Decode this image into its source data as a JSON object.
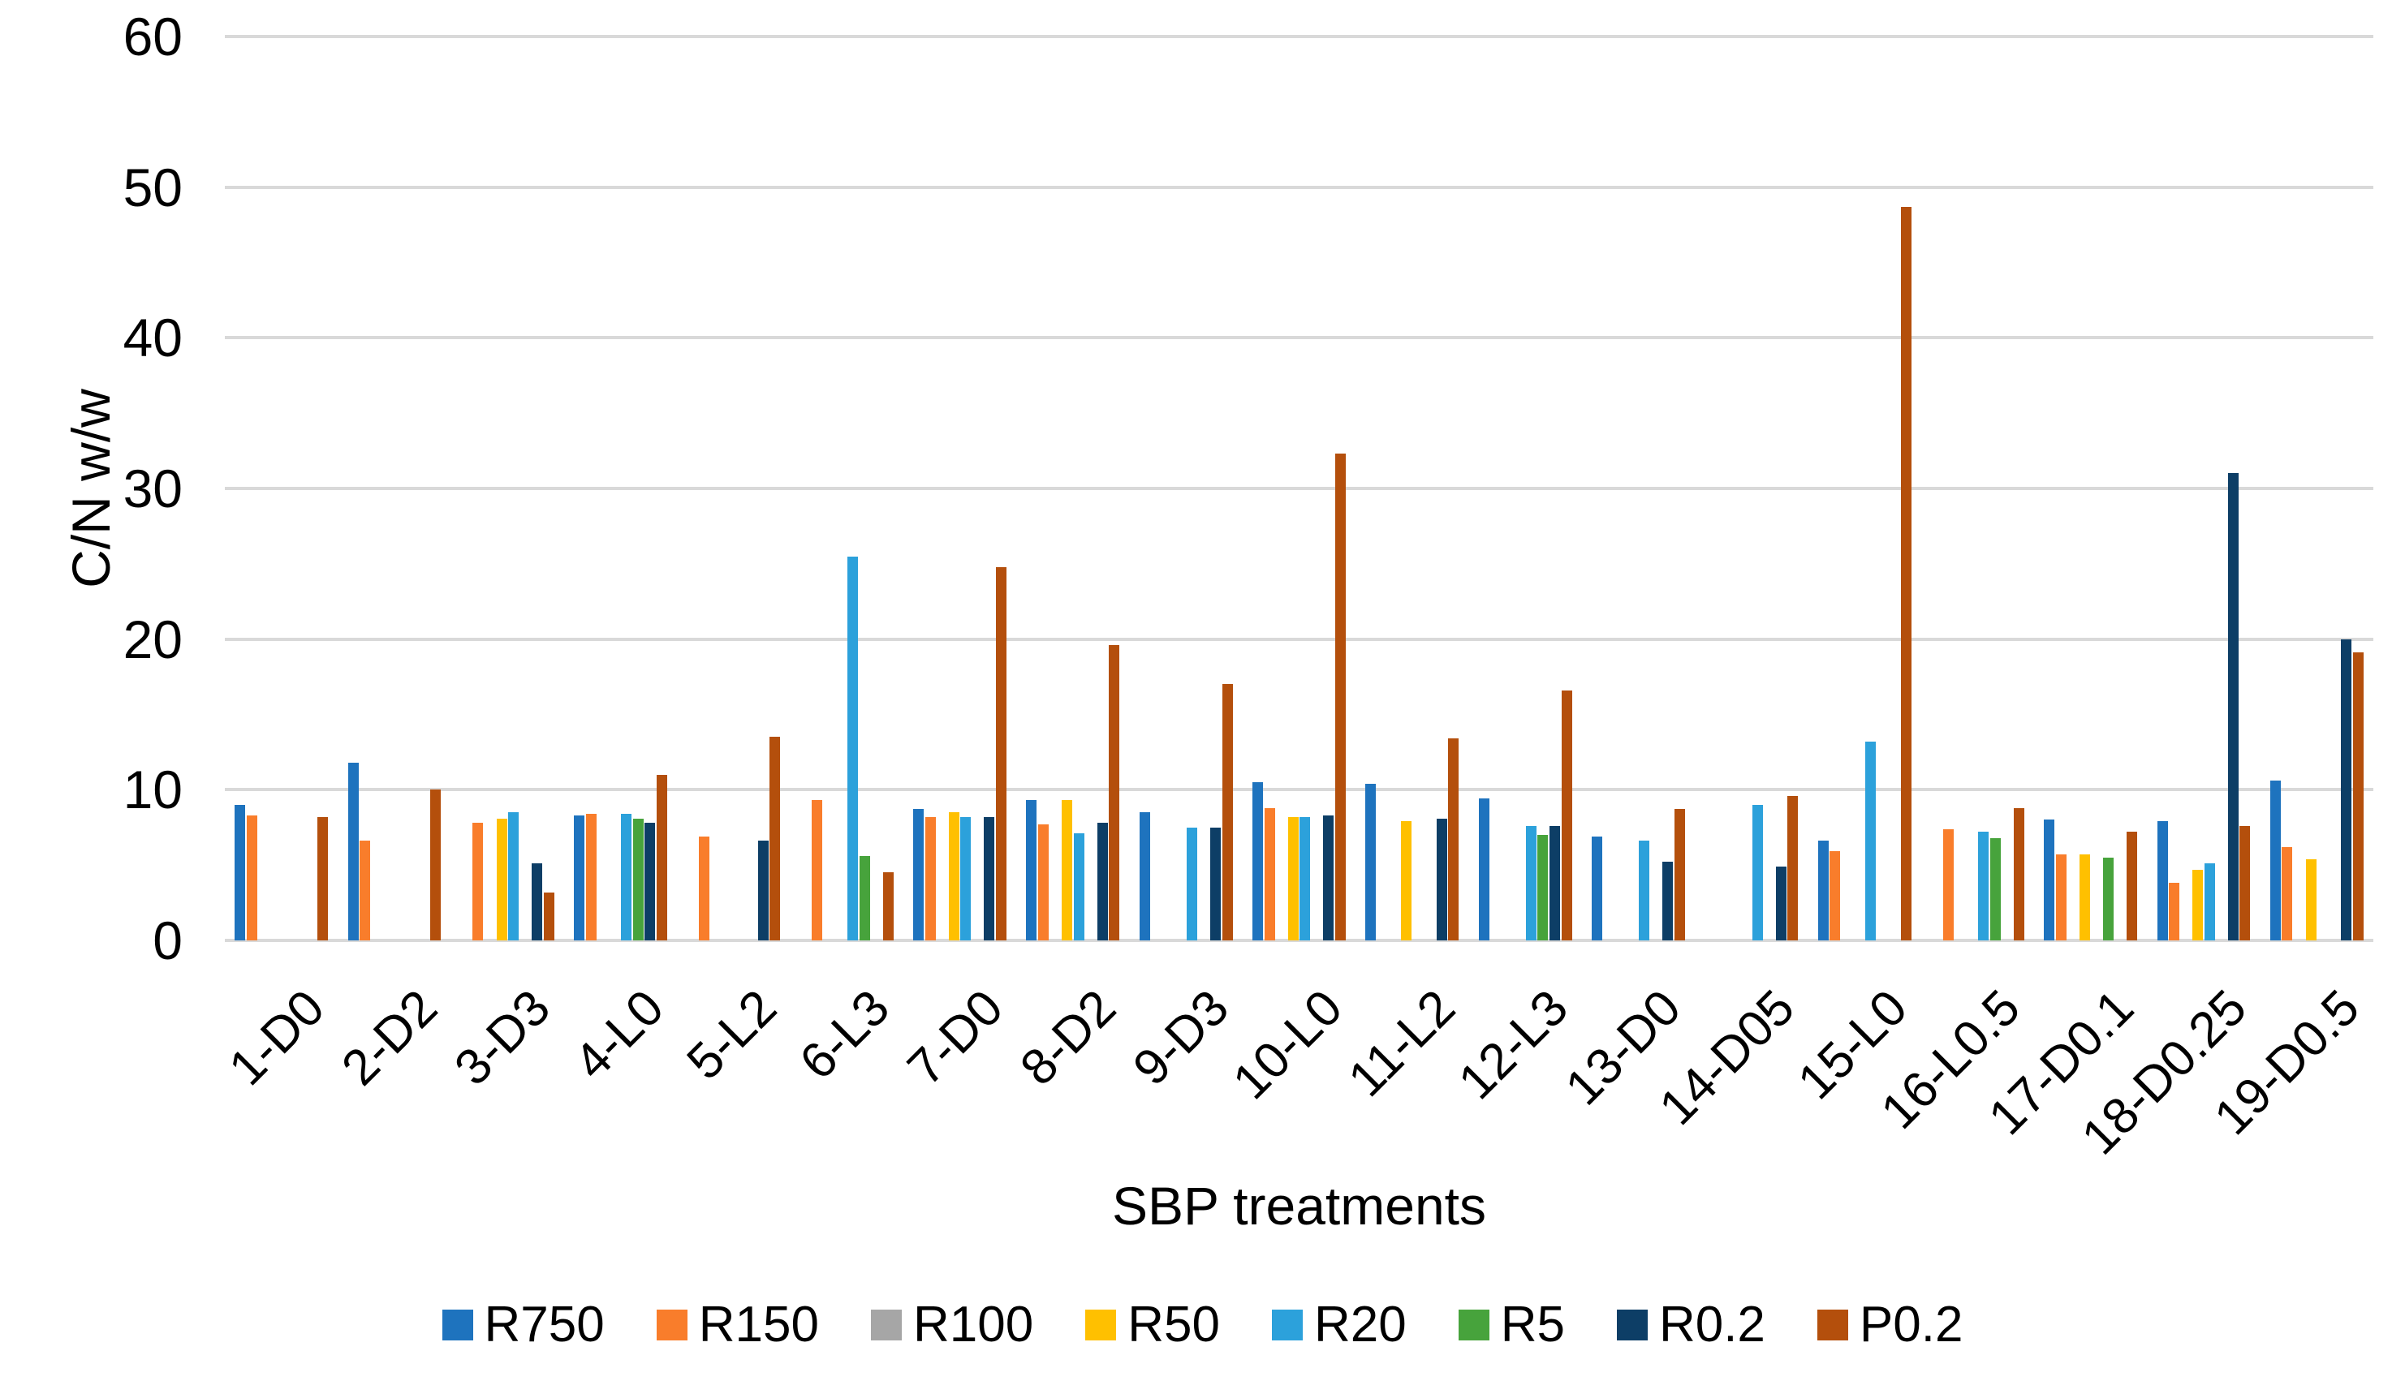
{
  "chart_data": {
    "type": "bar",
    "title": "",
    "xlabel": "SBP treatments",
    "ylabel": "C/N w/w",
    "ylim": [
      0,
      60
    ],
    "ytick_step": 10,
    "y_ticks": [
      "0",
      "10",
      "20",
      "30",
      "40",
      "50",
      "60"
    ],
    "grid": true,
    "legend_position": "bottom",
    "gridline_color": "#d9d9d9",
    "categories": [
      "1-D0",
      "2-D2",
      "3-D3",
      "4-L0",
      "5-L2",
      "6-L3",
      "7-D0",
      "8-D2",
      "9-D3",
      "10-L0",
      "11-L2",
      "12-L3",
      "13-D0",
      "14-D05",
      "15-L0",
      "16-L0.5",
      "17-D0.1",
      "18-D0.25",
      "19-D0.5"
    ],
    "series": [
      {
        "name": "R750",
        "color": "#1E73BE",
        "values": [
          9.0,
          11.8,
          null,
          8.3,
          null,
          null,
          8.7,
          9.3,
          8.5,
          10.5,
          10.4,
          9.4,
          6.9,
          null,
          6.6,
          null,
          8.0,
          7.9,
          10.6
        ]
      },
      {
        "name": "R150",
        "color": "#F97D2B",
        "values": [
          8.3,
          6.6,
          7.8,
          8.4,
          6.9,
          9.3,
          8.2,
          7.7,
          null,
          8.8,
          null,
          null,
          null,
          null,
          5.9,
          7.4,
          5.7,
          3.8,
          6.2
        ]
      },
      {
        "name": "R100",
        "color": "#A6A6A6",
        "values": [
          null,
          null,
          null,
          null,
          null,
          null,
          null,
          null,
          null,
          null,
          null,
          null,
          null,
          null,
          null,
          null,
          null,
          null,
          null
        ]
      },
      {
        "name": "R50",
        "color": "#FFC000",
        "values": [
          null,
          null,
          8.1,
          null,
          null,
          null,
          8.5,
          9.3,
          null,
          8.2,
          7.9,
          null,
          null,
          null,
          null,
          null,
          5.7,
          4.7,
          5.4
        ]
      },
      {
        "name": "R20",
        "color": "#2CA1DB",
        "values": [
          null,
          null,
          8.5,
          8.4,
          null,
          25.5,
          8.2,
          7.1,
          7.5,
          8.2,
          null,
          7.6,
          6.6,
          9.0,
          13.2,
          7.2,
          null,
          5.1,
          null
        ]
      },
      {
        "name": "R5",
        "color": "#47A33C",
        "values": [
          null,
          null,
          null,
          8.1,
          null,
          5.6,
          null,
          null,
          null,
          null,
          null,
          7.0,
          null,
          null,
          null,
          6.8,
          5.5,
          null,
          null
        ]
      },
      {
        "name": "R0.2",
        "color": "#0D3E66",
        "values": [
          null,
          null,
          5.1,
          7.8,
          6.6,
          null,
          8.2,
          7.8,
          7.5,
          8.3,
          8.1,
          7.6,
          5.2,
          4.9,
          null,
          null,
          null,
          31.0,
          20.0
        ]
      },
      {
        "name": "P0.2",
        "color": "#B44F0C",
        "values": [
          8.2,
          10.0,
          3.2,
          11.0,
          13.5,
          4.5,
          24.8,
          19.6,
          17.0,
          32.3,
          13.4,
          16.6,
          8.7,
          9.6,
          48.7,
          8.8,
          7.2,
          7.6,
          19.1
        ]
      }
    ]
  }
}
